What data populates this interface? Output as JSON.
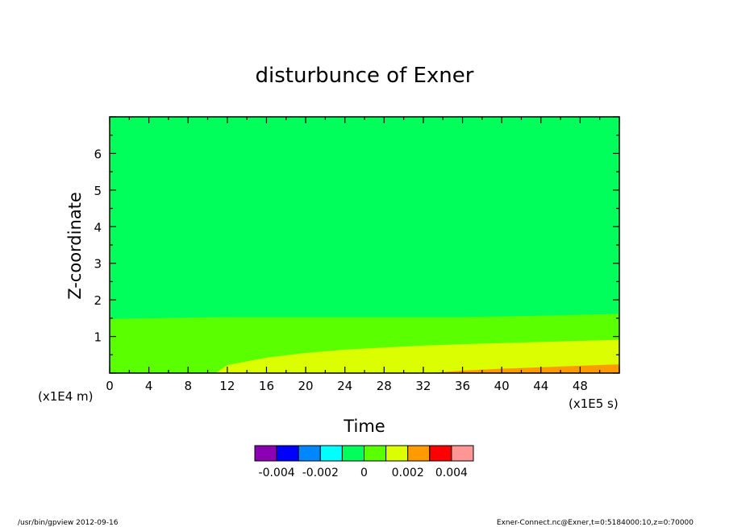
{
  "chart_data": {
    "type": "heatmap",
    "title": "disturbunce of Exner",
    "xlabel": "Time",
    "ylabel": "Z-coordinate",
    "x_unit": "(x1E5 s)",
    "y_unit": "(x1E4 m)",
    "xlim": [
      0,
      52
    ],
    "ylim": [
      0,
      7
    ],
    "x_ticks": [
      0,
      4,
      8,
      12,
      16,
      20,
      24,
      28,
      32,
      36,
      40,
      44,
      48
    ],
    "y_ticks": [
      1,
      2,
      3,
      4,
      5,
      6
    ],
    "levels": [
      {
        "color": "#8c00b4",
        "range": "< -0.004"
      },
      {
        "color": "#0000ff",
        "range": "-0.004 to -0.003"
      },
      {
        "color": "#0087ff",
        "range": "-0.003 to -0.002"
      },
      {
        "color": "#00ffff",
        "range": "-0.002 to -0.001"
      },
      {
        "color": "#00ff5a",
        "range": "-0.001 to 0"
      },
      {
        "color": "#5aff00",
        "range": "0 to 0.001"
      },
      {
        "color": "#dcff00",
        "range": "0.001 to 0.002"
      },
      {
        "color": "#ff9b00",
        "range": "0.002 to 0.003"
      },
      {
        "color": "#ff0000",
        "range": "0.003 to 0.004"
      },
      {
        "color": "#ff9696",
        "range": "> 0.004"
      }
    ],
    "colorbar_labels": [
      {
        "text": "-0.004",
        "value": -0.004
      },
      {
        "text": "-0.002",
        "value": -0.002
      },
      {
        "text": "0",
        "value": 0
      },
      {
        "text": "0.002",
        "value": 0.002
      },
      {
        "text": "0.004",
        "value": 0.004
      }
    ],
    "contour_boundaries": [
      {
        "name": "0 contour",
        "points": [
          [
            0,
            1.48
          ],
          [
            12,
            1.53
          ],
          [
            24,
            1.53
          ],
          [
            36,
            1.53
          ],
          [
            46,
            1.58
          ],
          [
            52,
            1.62
          ]
        ]
      },
      {
        "name": "0.001 contour",
        "points": [
          [
            10.8,
            0
          ],
          [
            12,
            0.22
          ],
          [
            16,
            0.42
          ],
          [
            20,
            0.55
          ],
          [
            24,
            0.64
          ],
          [
            28,
            0.7
          ],
          [
            32,
            0.75
          ],
          [
            36,
            0.79
          ],
          [
            40,
            0.82
          ],
          [
            44,
            0.85
          ],
          [
            48,
            0.88
          ],
          [
            52,
            0.91
          ]
        ]
      },
      {
        "name": "0.002 contour",
        "points": [
          [
            32.5,
            0
          ],
          [
            36,
            0.07
          ],
          [
            40,
            0.12
          ],
          [
            44,
            0.16
          ],
          [
            48,
            0.2
          ],
          [
            52,
            0.24
          ]
        ]
      }
    ]
  },
  "footer": {
    "left": "/usr/bin/gpview   2012-09-16",
    "right": "Exner-Connect.nc@Exner,t=0:5184000:10,z=0:70000"
  }
}
